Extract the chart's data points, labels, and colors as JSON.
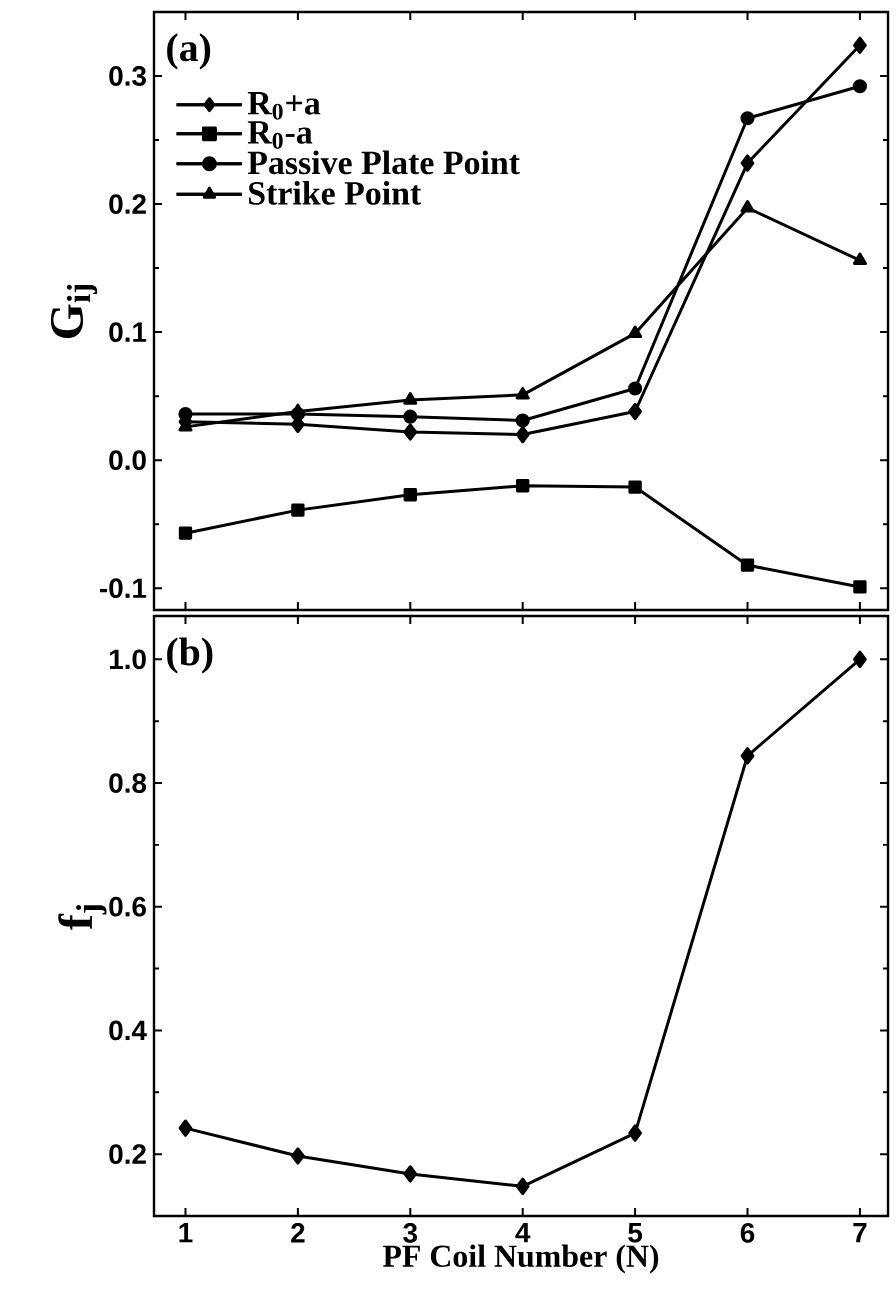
{
  "chart_data": [
    {
      "type": "line",
      "x": [
        1,
        2,
        3,
        4,
        5,
        6,
        7
      ],
      "xlim": [
        0.72,
        7.25
      ],
      "xticks": [
        1,
        2,
        3,
        4,
        5,
        6,
        7
      ],
      "ylim": [
        -0.117,
        0.35
      ],
      "yticks": [
        -0.1,
        {
          "value": 0,
          "label": "0.0"
        },
        0.1,
        0.2,
        0.3
      ],
      "tick_labels": "y",
      "ylabel": "G$_{ij}$",
      "legend": "top left",
      "annotations": [
        "(a)"
      ],
      "series": [
        {
          "name": "R$_{0}$+a",
          "color": "#000000",
          "marker": "diamond",
          "values": [
            0.03,
            0.028,
            0.022,
            0.02,
            0.038,
            0.232,
            0.324
          ]
        },
        {
          "name": "R$_{0}$-a",
          "color": "#000000",
          "marker": "square",
          "values": [
            -0.057,
            -0.039,
            -0.027,
            -0.02,
            -0.021,
            -0.082,
            -0.099
          ]
        },
        {
          "name": "Passive Plate Point",
          "color": "#000000",
          "marker": "circle",
          "values": [
            0.036,
            0.036,
            0.034,
            0.031,
            0.056,
            0.267,
            0.292
          ]
        },
        {
          "name": "Strike Point",
          "color": "#000000",
          "marker": "triangle",
          "values": [
            0.026,
            0.038,
            0.047,
            0.051,
            0.099,
            0.197,
            0.156
          ]
        }
      ]
    },
    {
      "type": "line",
      "x": [
        1,
        2,
        3,
        4,
        5,
        6,
        7
      ],
      "xlim": [
        0.72,
        7.25
      ],
      "xticks": [
        1,
        2,
        3,
        4,
        5,
        6,
        7
      ],
      "ylim": [
        0.1,
        1.07
      ],
      "yticks": [
        0.2,
        0.4,
        0.6,
        0.8,
        {
          "value": 1,
          "label": "1.0"
        }
      ],
      "xlabel": "PF Coil Number (N)",
      "ylabel": "f$_{j}$",
      "annotations": [
        "(b)"
      ],
      "marker": "diamond",
      "color": "#000000",
      "values": [
        0.242,
        0.197,
        0.168,
        0.148,
        0.234,
        0.844,
        1.0
      ]
    }
  ]
}
